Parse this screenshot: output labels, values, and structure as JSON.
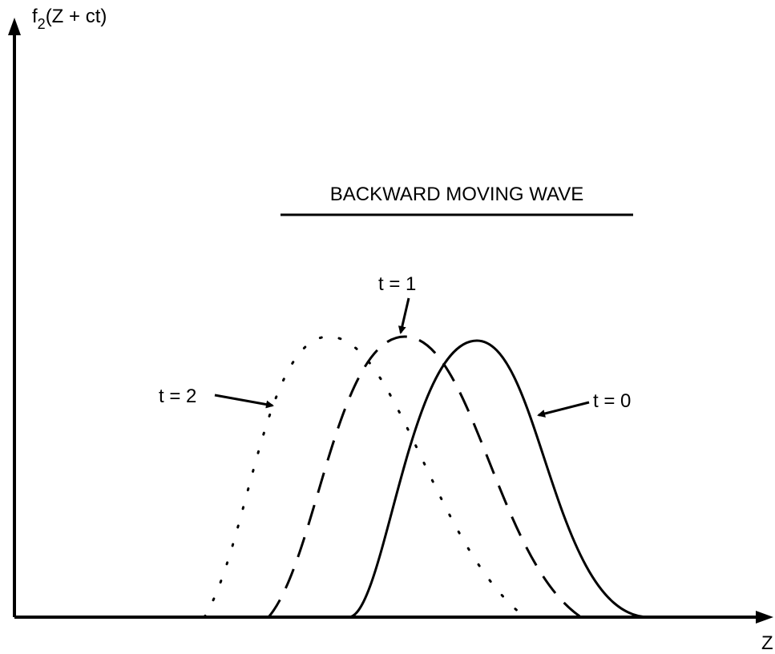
{
  "y_axis_label": {
    "base": "f",
    "subscript": "2",
    "rest": "(Z + ct)"
  },
  "x_axis_label": "Z",
  "title": "BACKWARD MOVING WAVE",
  "curves": [
    {
      "label": "t = 0"
    },
    {
      "label": "t = 1"
    },
    {
      "label": "t = 2"
    }
  ]
}
